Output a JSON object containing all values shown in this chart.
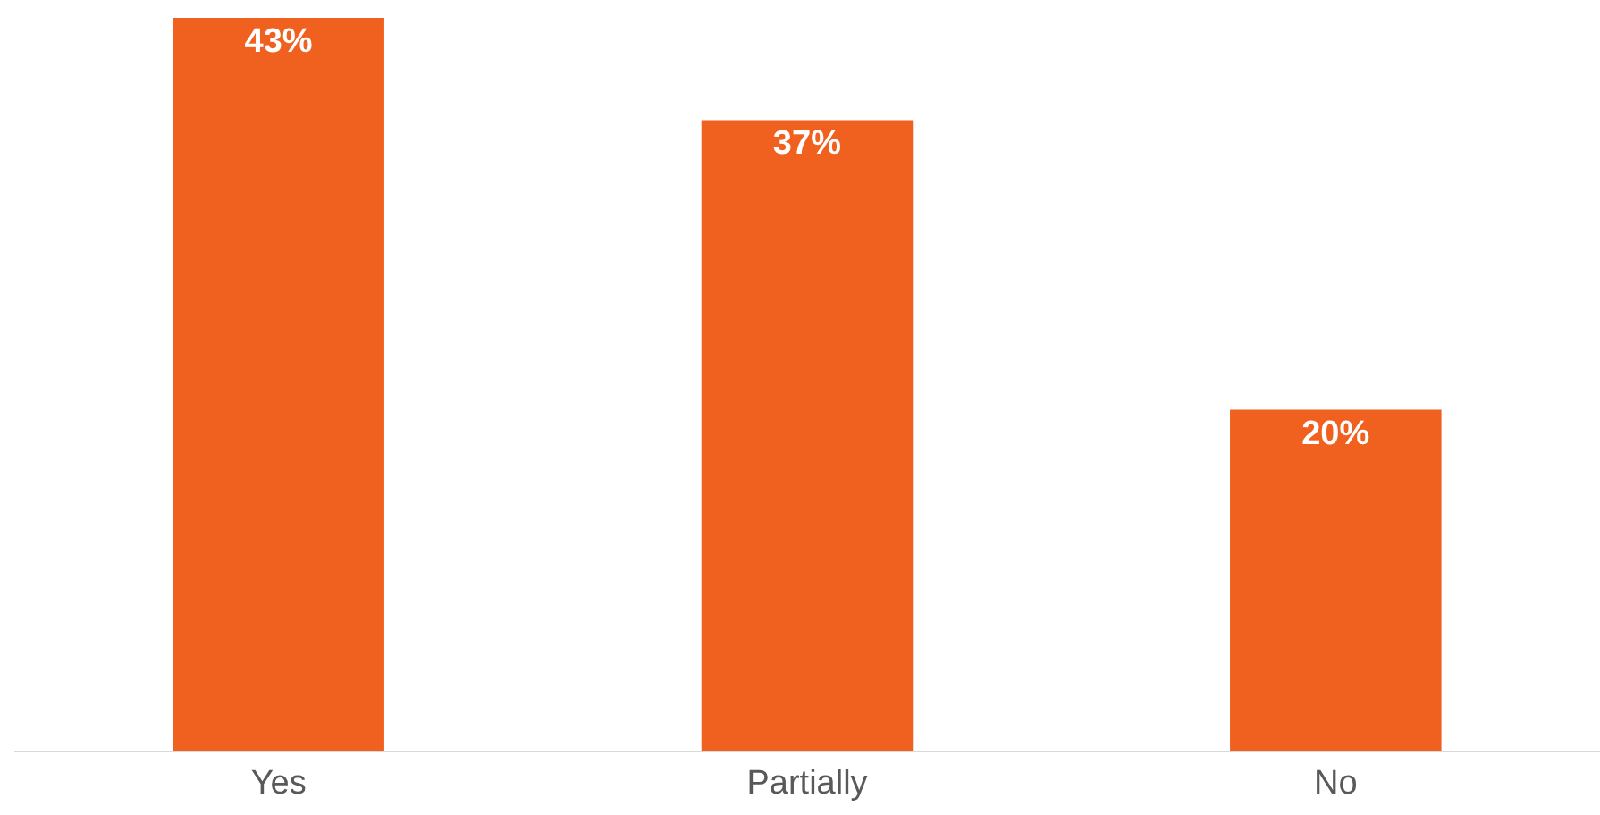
{
  "chart_data": {
    "type": "bar",
    "categories": [
      "Yes",
      "Partially",
      "No"
    ],
    "values": [
      43,
      37,
      20
    ],
    "value_labels": [
      "43%",
      "37%",
      "20%"
    ],
    "color": "#f0601e",
    "ylim": [
      0,
      43
    ],
    "tick_labels": "x"
  }
}
